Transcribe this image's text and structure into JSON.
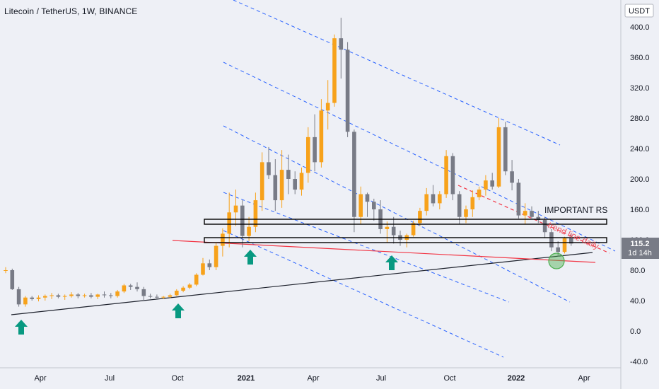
{
  "header": {
    "title": "Litecoin / TetherUS, 1W, BINANCE"
  },
  "axis": {
    "currency": "USDT",
    "price_ticks": [
      "400.0",
      "360.0",
      "320.0",
      "280.0",
      "240.0",
      "200.0",
      "160.0",
      "120.0",
      "80.0",
      "40.0",
      "0.0",
      "-40.0"
    ],
    "time_ticks": [
      {
        "label": "Apr",
        "year": false
      },
      {
        "label": "Jul",
        "year": false
      },
      {
        "label": "Oct",
        "year": false
      },
      {
        "label": "2021",
        "year": true
      },
      {
        "label": "Apr",
        "year": false
      },
      {
        "label": "Jul",
        "year": false
      },
      {
        "label": "Oct",
        "year": false
      },
      {
        "label": "2022",
        "year": true
      },
      {
        "label": "Apr",
        "year": false
      }
    ]
  },
  "price_badge": {
    "price": "115.2",
    "countdown": "1d 14h",
    "color": "#787b86"
  },
  "annotations": {
    "important_rs": "IMPORTANT RS",
    "trend_line": "trend line daily"
  },
  "colors": {
    "up": "#f7a21b",
    "down": "#787b86",
    "channel": "#2962ff",
    "red_line": "#f23645",
    "arrow": "#089981",
    "circle": "#4caf50",
    "background": "#eef0f6"
  },
  "chart_data": {
    "type": "candlestick",
    "symbol": "LTCUSDT",
    "timeframe": "1W",
    "exchange": "BINANCE",
    "ylim": [
      -50,
      420
    ],
    "grid": false,
    "candles": [
      [
        80,
        84,
        76,
        80
      ],
      [
        80,
        82,
        54,
        55
      ],
      [
        55,
        58,
        32,
        35
      ],
      [
        35,
        46,
        32,
        44
      ],
      [
        44,
        46,
        40,
        42
      ],
      [
        42,
        47,
        39,
        44
      ],
      [
        44,
        48,
        40,
        46
      ],
      [
        46,
        50,
        42,
        47
      ],
      [
        47,
        49,
        43,
        45
      ],
      [
        45,
        48,
        41,
        46
      ],
      [
        46,
        51,
        44,
        48
      ],
      [
        48,
        50,
        43,
        46
      ],
      [
        46,
        49,
        44,
        47
      ],
      [
        47,
        50,
        43,
        45
      ],
      [
        45,
        49,
        42,
        48
      ],
      [
        48,
        52,
        44,
        47
      ],
      [
        47,
        50,
        43,
        46
      ],
      [
        46,
        54,
        44,
        52
      ],
      [
        52,
        62,
        50,
        60
      ],
      [
        60,
        62,
        54,
        58
      ],
      [
        58,
        64,
        52,
        55
      ],
      [
        55,
        58,
        40,
        46
      ],
      [
        46,
        49,
        43,
        45
      ],
      [
        45,
        48,
        41,
        44
      ],
      [
        44,
        46,
        42,
        45
      ],
      [
        45,
        49,
        43,
        47
      ],
      [
        47,
        55,
        46,
        53
      ],
      [
        53,
        59,
        51,
        57
      ],
      [
        57,
        63,
        55,
        61
      ],
      [
        61,
        76,
        59,
        74
      ],
      [
        74,
        96,
        73,
        89
      ],
      [
        89,
        94,
        80,
        84
      ],
      [
        84,
        116,
        80,
        112
      ],
      [
        112,
        135,
        98,
        128
      ],
      [
        128,
        182,
        110,
        156
      ],
      [
        156,
        186,
        138,
        165
      ],
      [
        165,
        172,
        110,
        125
      ],
      [
        125,
        150,
        118,
        137
      ],
      [
        137,
        182,
        130,
        172
      ],
      [
        172,
        235,
        158,
        222
      ],
      [
        222,
        242,
        200,
        205
      ],
      [
        205,
        226,
        158,
        172
      ],
      [
        172,
        238,
        162,
        212
      ],
      [
        212,
        232,
        180,
        200
      ],
      [
        200,
        210,
        180,
        186
      ],
      [
        186,
        215,
        178,
        208
      ],
      [
        208,
        268,
        195,
        255
      ],
      [
        255,
        285,
        210,
        222
      ],
      [
        222,
        305,
        215,
        290
      ],
      [
        290,
        330,
        265,
        300
      ],
      [
        300,
        390,
        295,
        385
      ],
      [
        385,
        412,
        332,
        370
      ],
      [
        370,
        380,
        255,
        262
      ],
      [
        262,
        265,
        130,
        150
      ],
      [
        150,
        190,
        140,
        180
      ],
      [
        180,
        182,
        150,
        170
      ],
      [
        170,
        174,
        145,
        160
      ],
      [
        160,
        172,
        128,
        134
      ],
      [
        134,
        144,
        116,
        137
      ],
      [
        137,
        150,
        115,
        126
      ],
      [
        126,
        132,
        112,
        120
      ],
      [
        120,
        128,
        110,
        126
      ],
      [
        126,
        145,
        124,
        142
      ],
      [
        142,
        162,
        138,
        158
      ],
      [
        158,
        188,
        152,
        180
      ],
      [
        180,
        192,
        164,
        168
      ],
      [
        168,
        184,
        160,
        180
      ],
      [
        180,
        238,
        175,
        230
      ],
      [
        230,
        234,
        172,
        180
      ],
      [
        180,
        184,
        140,
        150
      ],
      [
        150,
        165,
        142,
        160
      ],
      [
        160,
        185,
        150,
        176
      ],
      [
        176,
        190,
        172,
        186
      ],
      [
        186,
        205,
        178,
        198
      ],
      [
        198,
        208,
        186,
        190
      ],
      [
        190,
        280,
        188,
        268
      ],
      [
        268,
        275,
        205,
        210
      ],
      [
        210,
        225,
        185,
        195
      ],
      [
        195,
        200,
        148,
        152
      ],
      [
        152,
        168,
        140,
        158
      ],
      [
        158,
        164,
        148,
        150
      ],
      [
        150,
        158,
        142,
        146
      ],
      [
        146,
        150,
        122,
        130
      ],
      [
        130,
        134,
        105,
        110
      ],
      [
        110,
        118,
        98,
        104
      ],
      [
        104,
        124,
        102,
        122
      ],
      [
        122,
        128,
        112,
        115
      ]
    ]
  }
}
